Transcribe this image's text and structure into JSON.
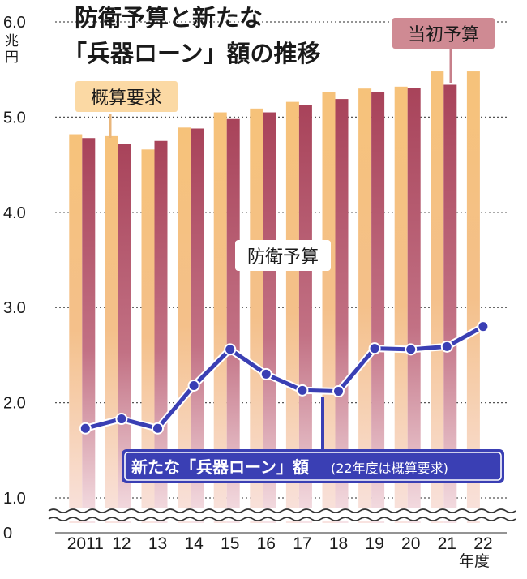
{
  "chart_data": {
    "type": "bar+line",
    "title": "防衛予算と新たな「兵器ローン」額の推移",
    "y_unit": "兆円",
    "y_ticks": [
      "6.0",
      "5.0",
      "4.0",
      "3.0",
      "2.0",
      "1.0",
      "0"
    ],
    "y_tick_values": [
      6.0,
      5.0,
      4.0,
      3.0,
      2.0,
      1.0,
      0
    ],
    "ylim": [
      0,
      6.0
    ],
    "axis_break": true,
    "x_unit": "年度",
    "categories": [
      "2011",
      "12",
      "13",
      "14",
      "15",
      "16",
      "17",
      "18",
      "19",
      "20",
      "21",
      "22"
    ],
    "series": [
      {
        "name": "概算要求",
        "kind": "bar",
        "values": [
          4.82,
          4.8,
          4.66,
          4.89,
          5.05,
          5.09,
          5.16,
          5.26,
          5.3,
          5.32,
          5.48,
          5.48
        ]
      },
      {
        "name": "当初予算",
        "kind": "bar",
        "values": [
          4.78,
          4.72,
          4.75,
          4.88,
          4.98,
          5.05,
          5.13,
          5.19,
          5.26,
          5.31,
          5.34,
          null
        ]
      },
      {
        "name": "新たな「兵器ローン」額",
        "kind": "line",
        "values": [
          1.73,
          1.83,
          1.73,
          2.18,
          2.56,
          2.3,
          2.13,
          2.12,
          2.57,
          2.56,
          2.59,
          2.8
        ]
      }
    ],
    "annotations": {
      "gaisan": "概算要求",
      "toushou": "当初予算",
      "budget": "防衛予算",
      "loan": "新たな「兵器ローン」額",
      "loan_note": "(22年度は概算要求)"
    },
    "colors": {
      "gaisan_bar": "#f6c27a",
      "toushou_bar": "#a8435a",
      "line": "#3a3fb4",
      "tag_gaisan_bg": "#fbd9a4",
      "tag_toushou_bg": "#cf8a93",
      "grid": "#555555"
    }
  }
}
